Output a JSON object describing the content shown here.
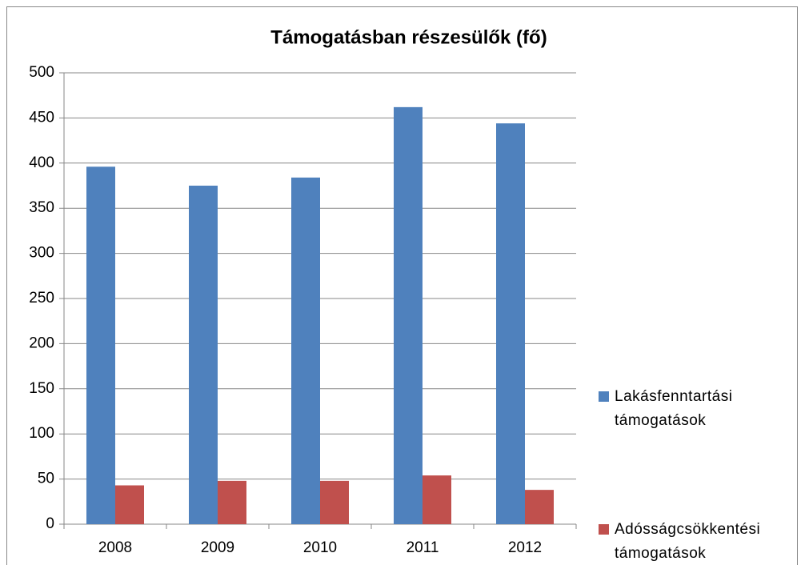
{
  "chart_data": {
    "type": "bar",
    "title": "Támogatásban részesülők (fő)",
    "categories": [
      "2008",
      "2009",
      "2010",
      "2011",
      "2012"
    ],
    "series": [
      {
        "name": "Lakásfenntartási támogatások",
        "color": "#4f81bd",
        "values": [
          396,
          375,
          384,
          462,
          444
        ]
      },
      {
        "name": "Adósságcsökkentési támogatások",
        "color": "#c0504d",
        "values": [
          43,
          48,
          48,
          54,
          38
        ]
      }
    ],
    "ylim": [
      0,
      500
    ],
    "yticks": [
      0,
      50,
      100,
      150,
      200,
      250,
      300,
      350,
      400,
      450,
      500
    ],
    "grid": true,
    "legend": "right"
  }
}
